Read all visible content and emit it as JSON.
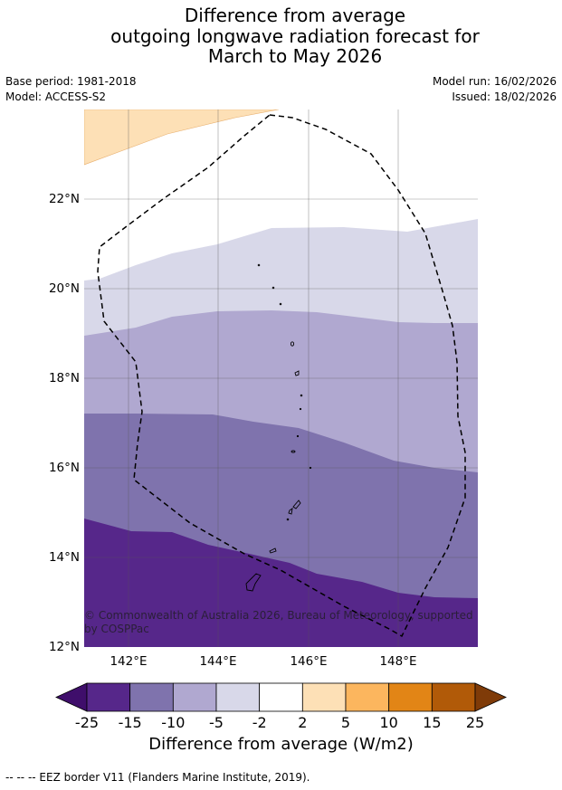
{
  "title_lines": [
    "Difference from average",
    "outgoing longwave radiation forecast for",
    "March to May 2026"
  ],
  "meta": {
    "base_period": "Base period: 1981-2018",
    "model": "Model: ACCESS-S2",
    "model_run": "Model run: 16/02/2026",
    "issued": "Issued: 18/02/2026"
  },
  "map": {
    "lat_labels": [
      "12°N",
      "14°N",
      "16°N",
      "18°N",
      "20°N",
      "22°N"
    ],
    "lon_labels": [
      "142°E",
      "144°E",
      "146°E",
      "148°E"
    ],
    "copyright_lines": [
      "© Commonwealth of Australia 2026, Bureau of Meteorology, supported",
      "by COSPPac"
    ],
    "colors": {
      "minus_25_to_15": "#56278a",
      "minus_15_to_10": "#7f73ad",
      "minus_10_to_5": "#b0a8d0",
      "minus_5_to_2": "#d8d8e9",
      "plus_2_to_5": "#fde0b6",
      "eez_border": "#000000",
      "grid": "#555555"
    }
  },
  "colorbar": {
    "ticks": [
      "-25",
      "-15",
      "-10",
      "-5",
      "-2",
      "2",
      "5",
      "10",
      "15",
      "25"
    ],
    "colors": [
      "#3f0e6b",
      "#56278a",
      "#7f73ad",
      "#b0a8d0",
      "#d8d8e9",
      "#ffffff",
      "#fde0b6",
      "#fcb65e",
      "#e28516",
      "#b15a08",
      "#7f3b08"
    ],
    "label": "Difference from average (W/m2)"
  },
  "footer": "--  --  -- EEZ border V11 (Flanders Marine Institute, 2019)."
}
